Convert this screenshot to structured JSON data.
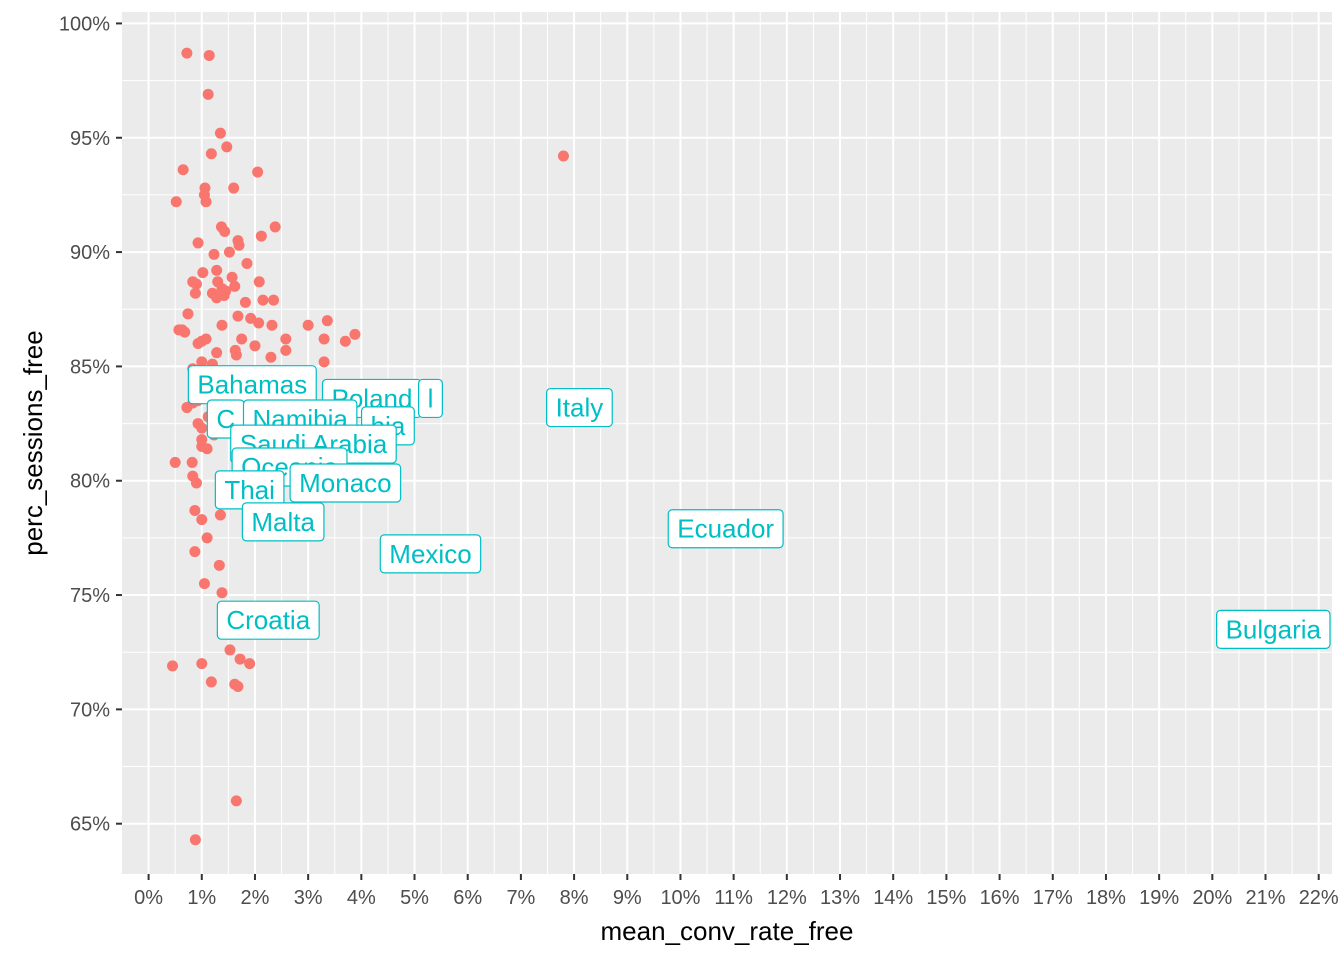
{
  "chart_data": {
    "type": "scatter",
    "title": "",
    "xlabel": "mean_conv_rate_free",
    "ylabel": "perc_sessions_free",
    "xlim": [
      -0.005,
      0.2225
    ],
    "ylim": [
      0.628,
      1.005
    ],
    "x_ticks": [
      0,
      0.01,
      0.02,
      0.03,
      0.04,
      0.05,
      0.06,
      0.07,
      0.08,
      0.09,
      0.1,
      0.11,
      0.12,
      0.13,
      0.14,
      0.15,
      0.16,
      0.17,
      0.18,
      0.19,
      0.2,
      0.21,
      0.22
    ],
    "x_tick_labels": [
      "0%",
      "1%",
      "2%",
      "3%",
      "4%",
      "5%",
      "6%",
      "7%",
      "8%",
      "9%",
      "10%",
      "11%",
      "12%",
      "13%",
      "14%",
      "15%",
      "16%",
      "17%",
      "18%",
      "19%",
      "20%",
      "21%",
      "22%"
    ],
    "y_ticks": [
      0.65,
      0.7,
      0.75,
      0.8,
      0.85,
      0.9,
      0.95,
      1.0
    ],
    "y_tick_labels": [
      "65%",
      "70%",
      "75%",
      "80%",
      "85%",
      "90%",
      "95%",
      "100%"
    ],
    "grid": true,
    "point_color": "#F8766D",
    "label_color": "#00BFC4",
    "points": [
      [
        0.0072,
        0.987
      ],
      [
        0.0114,
        0.986
      ],
      [
        0.0112,
        0.969
      ],
      [
        0.0135,
        0.952
      ],
      [
        0.0147,
        0.946
      ],
      [
        0.0118,
        0.943
      ],
      [
        0.0065,
        0.936
      ],
      [
        0.0205,
        0.935
      ],
      [
        0.0106,
        0.928
      ],
      [
        0.016,
        0.928
      ],
      [
        0.0105,
        0.925
      ],
      [
        0.0052,
        0.922
      ],
      [
        0.0108,
        0.922
      ],
      [
        0.0137,
        0.911
      ],
      [
        0.0238,
        0.911
      ],
      [
        0.0143,
        0.909
      ],
      [
        0.0212,
        0.907
      ],
      [
        0.0168,
        0.905
      ],
      [
        0.0093,
        0.904
      ],
      [
        0.017,
        0.903
      ],
      [
        0.0152,
        0.9
      ],
      [
        0.0123,
        0.899
      ],
      [
        0.0185,
        0.895
      ],
      [
        0.0102,
        0.891
      ],
      [
        0.0128,
        0.892
      ],
      [
        0.0157,
        0.889
      ],
      [
        0.0208,
        0.887
      ],
      [
        0.0083,
        0.887
      ],
      [
        0.009,
        0.886
      ],
      [
        0.013,
        0.887
      ],
      [
        0.0162,
        0.885
      ],
      [
        0.0138,
        0.884
      ],
      [
        0.0145,
        0.883
      ],
      [
        0.0088,
        0.882
      ],
      [
        0.012,
        0.882
      ],
      [
        0.0128,
        0.88
      ],
      [
        0.0142,
        0.881
      ],
      [
        0.0215,
        0.879
      ],
      [
        0.0235,
        0.879
      ],
      [
        0.0182,
        0.878
      ],
      [
        0.0074,
        0.873
      ],
      [
        0.0168,
        0.872
      ],
      [
        0.0192,
        0.871
      ],
      [
        0.0207,
        0.869
      ],
      [
        0.0138,
        0.868
      ],
      [
        0.0232,
        0.868
      ],
      [
        0.03,
        0.868
      ],
      [
        0.0336,
        0.87
      ],
      [
        0.0057,
        0.866
      ],
      [
        0.0063,
        0.866
      ],
      [
        0.0068,
        0.865
      ],
      [
        0.0108,
        0.862
      ],
      [
        0.01,
        0.861
      ],
      [
        0.0093,
        0.86
      ],
      [
        0.0175,
        0.862
      ],
      [
        0.0258,
        0.862
      ],
      [
        0.033,
        0.862
      ],
      [
        0.037,
        0.861
      ],
      [
        0.0388,
        0.864
      ],
      [
        0.02,
        0.859
      ],
      [
        0.0128,
        0.856
      ],
      [
        0.0163,
        0.857
      ],
      [
        0.0258,
        0.857
      ],
      [
        0.0165,
        0.855
      ],
      [
        0.023,
        0.854
      ],
      [
        0.01,
        0.852
      ],
      [
        0.012,
        0.851
      ],
      [
        0.033,
        0.852
      ],
      [
        0.0083,
        0.849
      ],
      [
        0.0097,
        0.845
      ],
      [
        0.0072,
        0.832
      ],
      [
        0.0083,
        0.834
      ],
      [
        0.0092,
        0.835
      ],
      [
        0.0093,
        0.825
      ],
      [
        0.0112,
        0.828
      ],
      [
        0.01,
        0.823
      ],
      [
        0.0123,
        0.82
      ],
      [
        0.01,
        0.818
      ],
      [
        0.01,
        0.815
      ],
      [
        0.011,
        0.814
      ],
      [
        0.005,
        0.808
      ],
      [
        0.0082,
        0.808
      ],
      [
        0.0083,
        0.802
      ],
      [
        0.009,
        0.799
      ],
      [
        0.0087,
        0.787
      ],
      [
        0.01,
        0.783
      ],
      [
        0.011,
        0.775
      ],
      [
        0.0135,
        0.785
      ],
      [
        0.0087,
        0.769
      ],
      [
        0.0133,
        0.763
      ],
      [
        0.0105,
        0.755
      ],
      [
        0.0138,
        0.751
      ],
      [
        0.0153,
        0.726
      ],
      [
        0.0172,
        0.722
      ],
      [
        0.019,
        0.72
      ],
      [
        0.01,
        0.72
      ],
      [
        0.0045,
        0.719
      ],
      [
        0.0118,
        0.712
      ],
      [
        0.0162,
        0.711
      ],
      [
        0.0168,
        0.71
      ],
      [
        0.0165,
        0.66
      ],
      [
        0.0088,
        0.643
      ],
      [
        0.078,
        0.942
      ]
    ],
    "labels": [
      {
        "text": "Bahamas",
        "x": 0.0195,
        "y": 0.842
      },
      {
        "text": "Poland",
        "x": 0.042,
        "y": 0.836
      },
      {
        "text": "l",
        "x": 0.053,
        "y": 0.836
      },
      {
        "text": "Italy",
        "x": 0.081,
        "y": 0.832
      },
      {
        "text": "C",
        "x": 0.0145,
        "y": 0.827
      },
      {
        "text": "Namibia",
        "x": 0.0285,
        "y": 0.827
      },
      {
        "text": "bia",
        "x": 0.045,
        "y": 0.824
      },
      {
        "text": "Saudi Arabia",
        "x": 0.031,
        "y": 0.816
      },
      {
        "text": "Oceania",
        "x": 0.0265,
        "y": 0.806
      },
      {
        "text": "Thai",
        "x": 0.019,
        "y": 0.796
      },
      {
        "text": "Monaco",
        "x": 0.037,
        "y": 0.799
      },
      {
        "text": "Malta",
        "x": 0.0253,
        "y": 0.782
      },
      {
        "text": "Ecuador",
        "x": 0.1085,
        "y": 0.779
      },
      {
        "text": "Mexico",
        "x": 0.053,
        "y": 0.768
      },
      {
        "text": "Croatia",
        "x": 0.0225,
        "y": 0.739
      },
      {
        "text": "Bulgaria",
        "x": 0.213,
        "y": 0.735
      }
    ]
  }
}
